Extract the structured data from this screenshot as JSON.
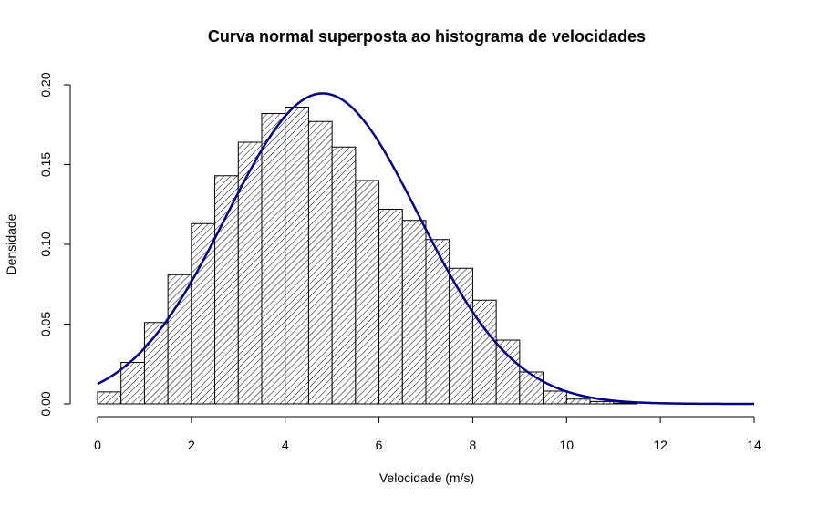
{
  "chart_data": {
    "type": "bar",
    "title": "Curva normal superposta ao histograma de velocidades",
    "xlabel": "Velocidade (m/s)",
    "ylabel": "Densidade",
    "xlim": [
      0,
      14
    ],
    "ylim": [
      0,
      0.2
    ],
    "x_ticks": [
      "0",
      "2",
      "4",
      "6",
      "8",
      "10",
      "12",
      "14"
    ],
    "y_ticks": [
      "0.00",
      "0.05",
      "0.10",
      "0.15",
      "0.20"
    ],
    "bin_width": 0.5,
    "bins": [
      {
        "start": 0.0,
        "end": 0.5,
        "density": 0.0075
      },
      {
        "start": 0.5,
        "end": 1.0,
        "density": 0.026
      },
      {
        "start": 1.0,
        "end": 1.5,
        "density": 0.051
      },
      {
        "start": 1.5,
        "end": 2.0,
        "density": 0.081
      },
      {
        "start": 2.0,
        "end": 2.5,
        "density": 0.113
      },
      {
        "start": 2.5,
        "end": 3.0,
        "density": 0.143
      },
      {
        "start": 3.0,
        "end": 3.5,
        "density": 0.164
      },
      {
        "start": 3.5,
        "end": 4.0,
        "density": 0.182
      },
      {
        "start": 4.0,
        "end": 4.5,
        "density": 0.186
      },
      {
        "start": 4.5,
        "end": 5.0,
        "density": 0.177
      },
      {
        "start": 5.0,
        "end": 5.5,
        "density": 0.161
      },
      {
        "start": 5.5,
        "end": 6.0,
        "density": 0.14
      },
      {
        "start": 6.0,
        "end": 6.5,
        "density": 0.122
      },
      {
        "start": 6.5,
        "end": 7.0,
        "density": 0.115
      },
      {
        "start": 7.0,
        "end": 7.5,
        "density": 0.103
      },
      {
        "start": 7.5,
        "end": 8.0,
        "density": 0.085
      },
      {
        "start": 8.0,
        "end": 8.5,
        "density": 0.065
      },
      {
        "start": 8.5,
        "end": 9.0,
        "density": 0.04
      },
      {
        "start": 9.0,
        "end": 9.5,
        "density": 0.02
      },
      {
        "start": 9.5,
        "end": 10.0,
        "density": 0.008
      },
      {
        "start": 10.0,
        "end": 10.5,
        "density": 0.003
      },
      {
        "start": 10.5,
        "end": 11.0,
        "density": 0.0015
      },
      {
        "start": 11.0,
        "end": 11.5,
        "density": 0.0005
      }
    ],
    "normal_curve": {
      "mean": 4.8,
      "sd": 2.05,
      "color": "#00008B"
    },
    "bar_fill": "hatched",
    "grid": false
  }
}
